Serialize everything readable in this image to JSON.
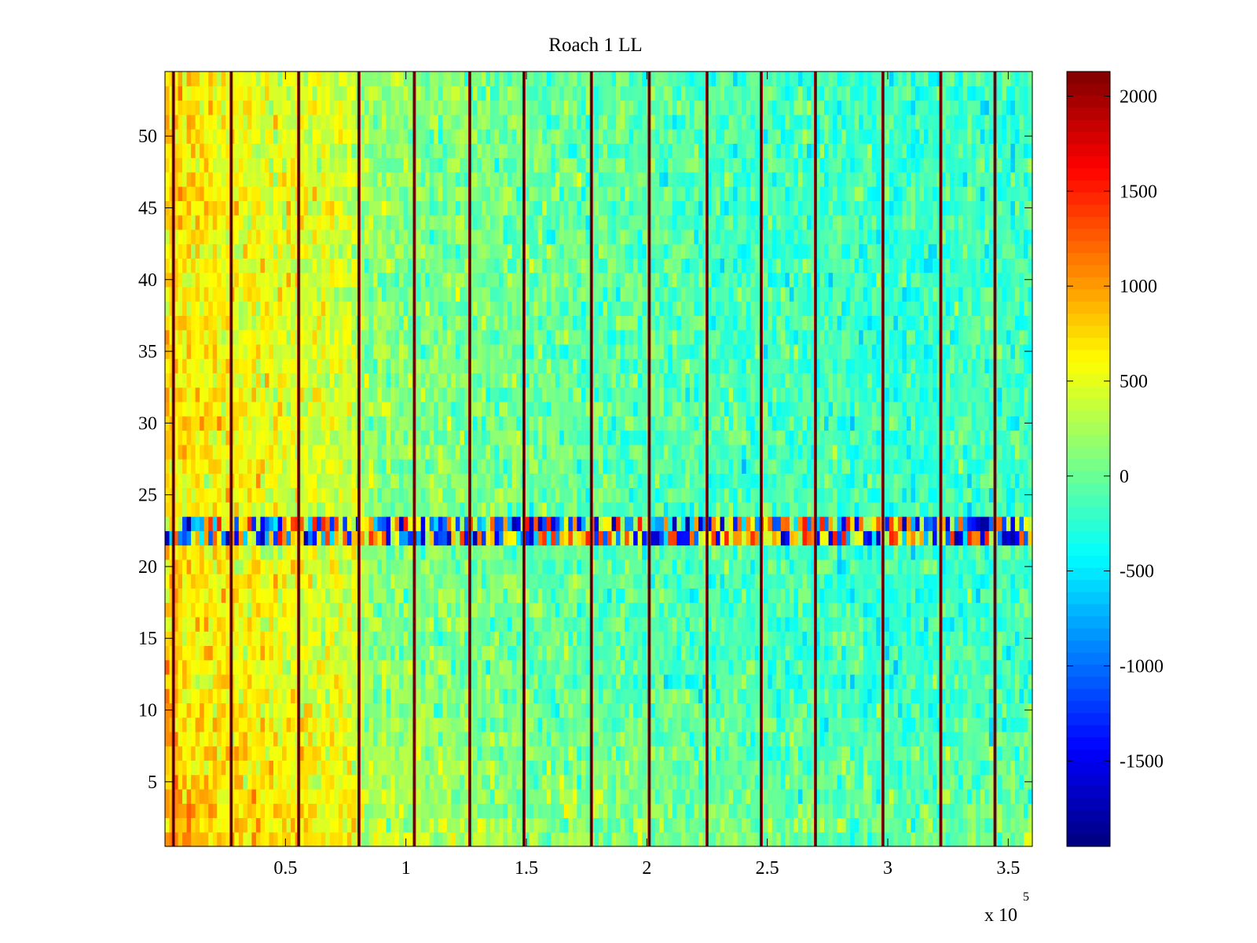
{
  "chart_data": {
    "type": "heatmap",
    "title": "Roach 1 LL",
    "xlabel": "",
    "ylabel": "",
    "colormap": "jet",
    "x_scale_label": {
      "prefix": "x 10",
      "exponent": "5"
    },
    "xlim": [
      0,
      360000
    ],
    "ylim": [
      0.5,
      54.5
    ],
    "x_ticks": [
      {
        "value": 50000,
        "label": "0.5"
      },
      {
        "value": 100000,
        "label": "1"
      },
      {
        "value": 150000,
        "label": "1.5"
      },
      {
        "value": 200000,
        "label": "2"
      },
      {
        "value": 250000,
        "label": "2.5"
      },
      {
        "value": 300000,
        "label": "3"
      },
      {
        "value": 350000,
        "label": "3.5"
      }
    ],
    "y_ticks": [
      {
        "value": 5,
        "label": "5"
      },
      {
        "value": 10,
        "label": "10"
      },
      {
        "value": 15,
        "label": "15"
      },
      {
        "value": 20,
        "label": "20"
      },
      {
        "value": 25,
        "label": "25"
      },
      {
        "value": 30,
        "label": "30"
      },
      {
        "value": 35,
        "label": "35"
      },
      {
        "value": 40,
        "label": "40"
      },
      {
        "value": 45,
        "label": "45"
      },
      {
        "value": 50,
        "label": "50"
      }
    ],
    "colorbar": {
      "clim": [
        -1950,
        2130
      ],
      "ticks": [
        {
          "value": 2000,
          "label": "2000"
        },
        {
          "value": 1500,
          "label": "1500"
        },
        {
          "value": 1000,
          "label": "1000"
        },
        {
          "value": 500,
          "label": "500"
        },
        {
          "value": 0,
          "label": "0"
        },
        {
          "value": -500,
          "label": "-500"
        },
        {
          "value": -1000,
          "label": "-1000"
        },
        {
          "value": -1500,
          "label": "-1500"
        }
      ]
    },
    "rows": 54,
    "anomalous_rows": [
      22,
      23
    ],
    "value_trend": [
      {
        "x": 0,
        "mean": 750
      },
      {
        "x": 25000,
        "mean": 600
      },
      {
        "x": 80000,
        "mean": 380
      },
      {
        "x": 82000,
        "mean": 160
      },
      {
        "x": 150000,
        "mean": 0
      },
      {
        "x": 220000,
        "mean": -120
      },
      {
        "x": 300000,
        "mean": -200
      },
      {
        "x": 360000,
        "mean": -180
      }
    ],
    "segment_boundaries_x": [
      3500,
      27500,
      55500,
      80500,
      103500,
      126500,
      149000,
      177000,
      201000,
      225000,
      247500,
      270000,
      298000,
      322000,
      344500
    ]
  }
}
